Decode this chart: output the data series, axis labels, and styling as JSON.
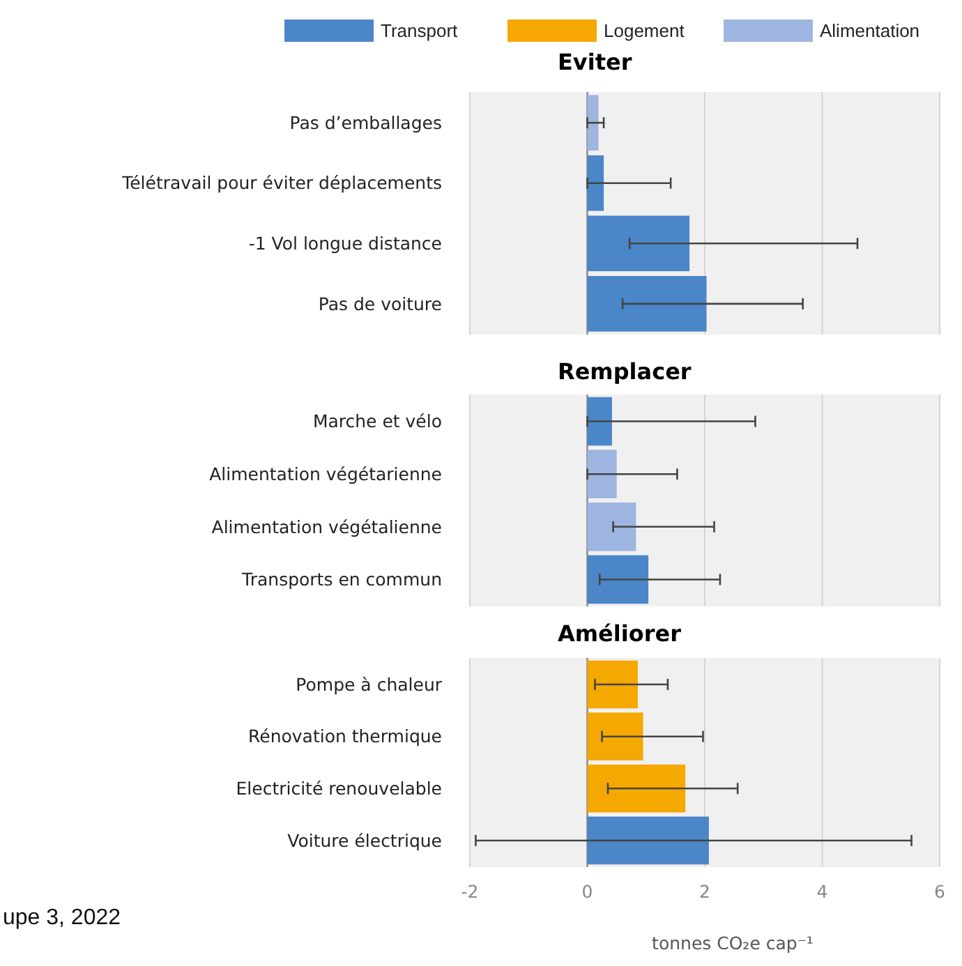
{
  "chart_data": [
    {
      "type": "bar",
      "orientation": "horizontal",
      "title": "Eviter",
      "categories": [
        "Pas d’emballages",
        "Télétravail pour éviter déplacements",
        "-1 Vol longue distance",
        "Pas de voiture"
      ],
      "series": [
        {
          "name": "Transport",
          "color": "#4a86c8",
          "values": [
            null,
            0.28,
            1.74,
            2.03
          ],
          "errors": [
            null,
            [
              0,
              1.42
            ],
            [
              0.72,
              4.6
            ],
            [
              0.6,
              3.67
            ]
          ]
        },
        {
          "name": "Logement",
          "color": "#f5a800",
          "values": [
            null,
            null,
            null,
            null
          ]
        },
        {
          "name": "Alimentation",
          "color": "#9db5e0",
          "values": [
            0.19,
            null,
            null,
            null
          ],
          "errors": [
            [
              0,
              0.28
            ],
            null,
            null,
            null
          ]
        }
      ],
      "xlim": [
        -2,
        6
      ],
      "xticks": [
        -2,
        0,
        2,
        4,
        6
      ],
      "grid": "x",
      "legend": "top",
      "tick_labels": "y"
    },
    {
      "type": "bar",
      "orientation": "horizontal",
      "title": "Remplacer",
      "categories": [
        "Marche et vélo",
        "Alimentation végétarienne",
        "Alimentation végétalienne",
        "Transports en commun"
      ],
      "series": [
        {
          "color": "#4a86c8",
          "values": [
            0.42,
            null,
            null,
            1.04
          ],
          "errors": [
            [
              0,
              2.86
            ],
            null,
            null,
            [
              0.21,
              2.26
            ]
          ]
        },
        {
          "color": "#9db5e0",
          "values": [
            null,
            0.5,
            0.83,
            null
          ],
          "errors": [
            null,
            [
              0,
              1.53
            ],
            [
              0.44,
              2.16
            ],
            null
          ]
        }
      ],
      "xlim": [
        -2,
        6
      ],
      "xticks": [
        -2,
        0,
        2,
        4,
        6
      ],
      "grid": "x",
      "tick_labels": "y"
    },
    {
      "type": "bar",
      "orientation": "horizontal",
      "title": "Améliorer",
      "categories": [
        "Pompe à chaleur",
        "Rénovation thermique",
        "Electricité renouvelable",
        "Voiture électrique"
      ],
      "series": [
        {
          "color": "#4a86c8",
          "values": [
            null,
            null,
            null,
            2.07
          ],
          "errors": [
            null,
            null,
            null,
            [
              -1.9,
              5.52
            ]
          ]
        },
        {
          "color": "#f5a800",
          "values": [
            0.86,
            0.95,
            1.67,
            null
          ],
          "errors": [
            [
              0.13,
              1.37
            ],
            [
              0.25,
              1.97
            ],
            [
              0.35,
              2.56
            ],
            null
          ]
        }
      ],
      "xlim": [
        -2,
        6
      ],
      "xticks": [
        -2,
        0,
        2,
        4,
        6
      ],
      "grid": "x",
      "xlabel": "tonnes CO₂e cap⁻¹",
      "annotations": [
        "upe 3, 2022"
      ]
    }
  ]
}
